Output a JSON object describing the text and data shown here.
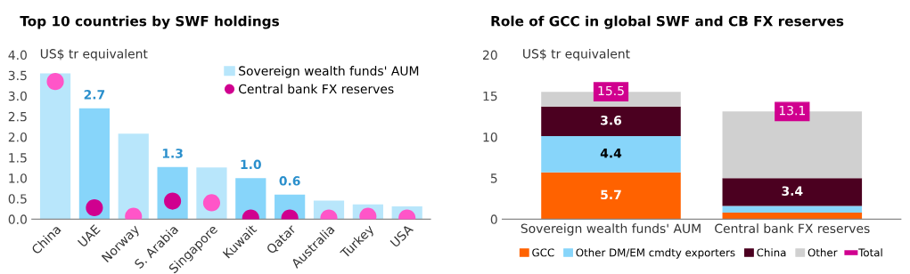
{
  "chart_data": [
    {
      "type": "bar",
      "title": "Top 10 countries by SWF holdings",
      "ylabel": "US$ tr equivalent",
      "categories": [
        "China",
        "UAE",
        "Norway",
        "S. Arabia",
        "Singapore",
        "Kuwait",
        "Qatar",
        "Australia",
        "Turkey",
        "USA"
      ],
      "series": [
        {
          "name": "Sovereign wealth funds' AUM",
          "color": "#b8e6fb",
          "colors": [
            "#b8e6fb",
            "#87d5fa",
            "#b8e6fb",
            "#87d5fa",
            "#b8e6fb",
            "#87d5fa",
            "#87d5fa",
            "#b8e6fb",
            "#b8e6fb",
            "#b8e6fb"
          ],
          "values": [
            3.55,
            2.7,
            2.08,
            1.27,
            1.26,
            1.0,
            0.6,
            0.45,
            0.36,
            0.31
          ],
          "value_labels": [
            null,
            "2.7",
            null,
            "1.3",
            null,
            "1.0",
            "0.6",
            null,
            null,
            null
          ]
        },
        {
          "name": "Central bank FX reserves",
          "type": "scatter",
          "color": "#d0008f",
          "colors": [
            "#ff55c8",
            "#d0008f",
            "#ff55c8",
            "#d0008f",
            "#ff55c8",
            "#d0008f",
            "#d0008f",
            "#ff55c8",
            "#ff55c8",
            "#ff55c8"
          ],
          "values": [
            3.35,
            0.28,
            0.07,
            0.44,
            0.4,
            0.03,
            0.03,
            0.03,
            0.07,
            0.03
          ],
          "marker": "circle"
        }
      ],
      "ylim": [
        0,
        4
      ],
      "yticks": [
        {
          "value": 0,
          "label": "0.0"
        },
        {
          "value": 0.5,
          "label": "0.5"
        },
        {
          "value": 1,
          "label": "1.0"
        },
        {
          "value": 1.5,
          "label": "1.5"
        },
        {
          "value": 2,
          "label": "2.0"
        },
        {
          "value": 2.5,
          "label": "2.5"
        },
        {
          "value": 3,
          "label": "3.0"
        },
        {
          "value": 3.5,
          "label": "3.5"
        },
        {
          "value": 4,
          "label": "4.0"
        }
      ],
      "grid": false,
      "legend": "top right"
    },
    {
      "type": "bar",
      "title": "Role of GCC in global SWF and CB FX reserves",
      "ylabel": "US$ tr equivalent",
      "stacked": true,
      "categories": [
        "Sovereign wealth funds' AUM",
        "Central bank FX reserves"
      ],
      "series": [
        {
          "name": "GCC",
          "color": "#ff6200",
          "values": [
            5.7,
            0.8
          ],
          "value_labels": [
            "5.7",
            null
          ]
        },
        {
          "name": "Other DM/EM cmdty exporters",
          "color": "#87d5fa",
          "values": [
            4.4,
            0.8
          ],
          "value_labels": [
            "4.4",
            null
          ]
        },
        {
          "name": "China",
          "color": "#4b0020",
          "values": [
            3.6,
            3.4
          ],
          "value_labels": [
            "3.6",
            "3.4"
          ]
        },
        {
          "name": "Other",
          "color": "#d0d0d0",
          "values": [
            1.8,
            8.1
          ]
        },
        {
          "name": "Total",
          "type": "scatter",
          "color": "#d0008f",
          "values": [
            15.5,
            13.1
          ],
          "marker": "square",
          "value_labels": [
            "15.5",
            "13.1"
          ]
        }
      ],
      "ylim": [
        0,
        20
      ],
      "yticks": [
        0,
        5,
        10,
        15,
        20
      ],
      "grid": false,
      "legend": "bottom"
    }
  ]
}
